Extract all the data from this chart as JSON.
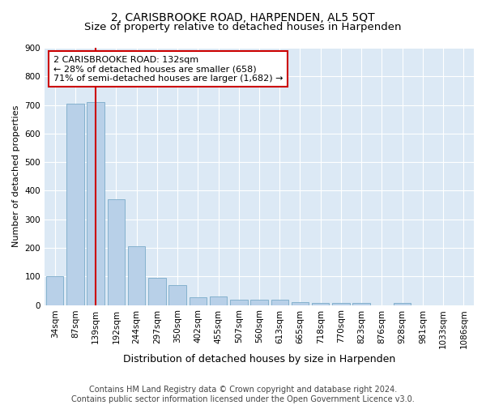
{
  "title": "2, CARISBROOKE ROAD, HARPENDEN, AL5 5QT",
  "subtitle": "Size of property relative to detached houses in Harpenden",
  "xlabel": "Distribution of detached houses by size in Harpenden",
  "ylabel": "Number of detached properties",
  "categories": [
    "34sqm",
    "87sqm",
    "139sqm",
    "192sqm",
    "244sqm",
    "297sqm",
    "350sqm",
    "402sqm",
    "455sqm",
    "507sqm",
    "560sqm",
    "613sqm",
    "665sqm",
    "718sqm",
    "770sqm",
    "823sqm",
    "876sqm",
    "928sqm",
    "981sqm",
    "1033sqm",
    "1086sqm"
  ],
  "values": [
    100,
    705,
    710,
    370,
    205,
    95,
    70,
    28,
    30,
    18,
    18,
    18,
    10,
    7,
    7,
    7,
    0,
    8,
    0,
    0,
    0
  ],
  "bar_color": "#b8d0e8",
  "bar_edge_color": "#7aaac8",
  "highlight_bar_index": 2,
  "highlight_line_color": "#cc0000",
  "annotation_text1": "2 CARISBROOKE ROAD: 132sqm",
  "annotation_text2": "← 28% of detached houses are smaller (658)",
  "annotation_text3": "71% of semi-detached houses are larger (1,682) →",
  "annotation_box_color": "#cc0000",
  "ylim": [
    0,
    900
  ],
  "yticks": [
    0,
    100,
    200,
    300,
    400,
    500,
    600,
    700,
    800,
    900
  ],
  "bg_color": "#ffffff",
  "plot_bg_color": "#dce9f5",
  "footer_text": "Contains HM Land Registry data © Crown copyright and database right 2024.\nContains public sector information licensed under the Open Government Licence v3.0.",
  "title_fontsize": 10,
  "subtitle_fontsize": 9.5,
  "xlabel_fontsize": 9,
  "ylabel_fontsize": 8,
  "tick_fontsize": 7.5,
  "annotation_fontsize": 8,
  "footer_fontsize": 7
}
